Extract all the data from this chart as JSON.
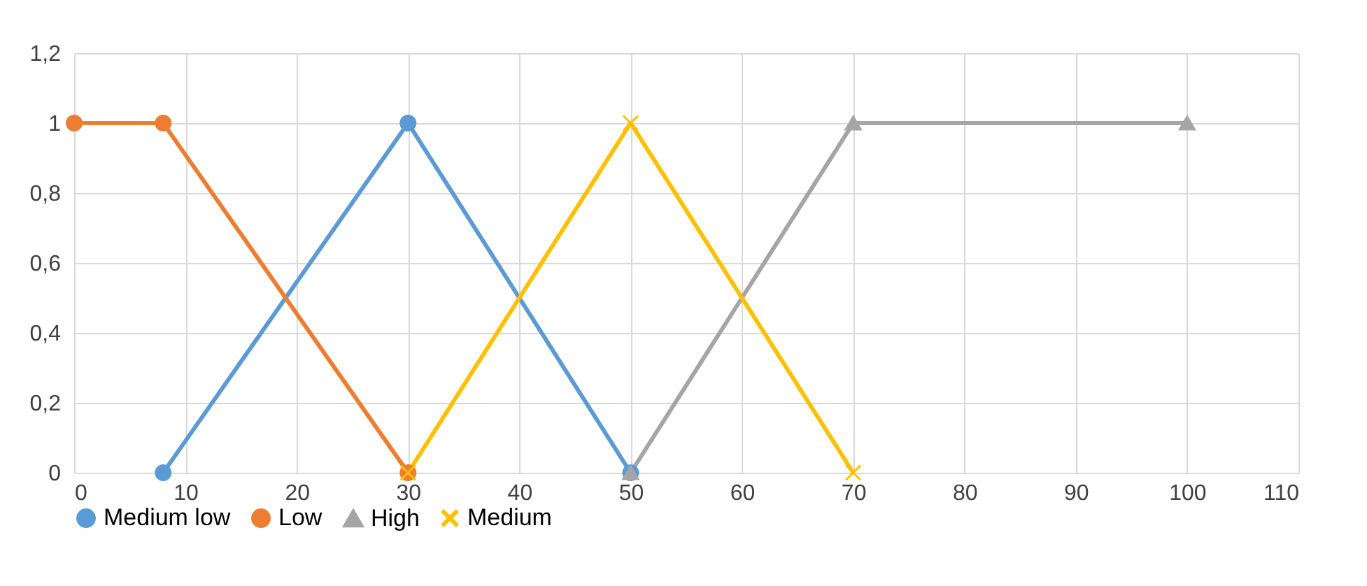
{
  "chart_data": {
    "type": "line",
    "series": [
      {
        "name": "Medium low",
        "color": "#5b9bd5",
        "marker": "circle",
        "x": [
          8,
          30,
          50
        ],
        "values": [
          0,
          1,
          0
        ]
      },
      {
        "name": "Low",
        "color": "#ed7d31",
        "marker": "circle",
        "x": [
          0,
          8,
          30
        ],
        "values": [
          1,
          1,
          0
        ]
      },
      {
        "name": "High",
        "color": "#a5a5a5",
        "marker": "triangle",
        "x": [
          50,
          70,
          100
        ],
        "values": [
          0,
          1,
          1
        ]
      },
      {
        "name": "Medium",
        "color": "#ffc000",
        "marker": "cross",
        "x": [
          30,
          50,
          70
        ],
        "values": [
          0,
          1,
          0
        ]
      }
    ],
    "xlim": [
      0,
      110
    ],
    "xticks": [
      0,
      10,
      20,
      30,
      40,
      50,
      60,
      70,
      80,
      90,
      100,
      110
    ],
    "ylim": [
      0,
      1.2
    ],
    "yticks": [
      0,
      {
        "value": 0.2,
        "label": "0,2"
      },
      {
        "value": 0.4,
        "label": "0,4"
      },
      {
        "value": 0.6,
        "label": "0,6"
      },
      {
        "value": 0.8,
        "label": "0,8"
      },
      1,
      {
        "value": 1.2,
        "label": "1,2"
      }
    ],
    "grid": true,
    "legend": "bottom",
    "line_style": "solid"
  }
}
